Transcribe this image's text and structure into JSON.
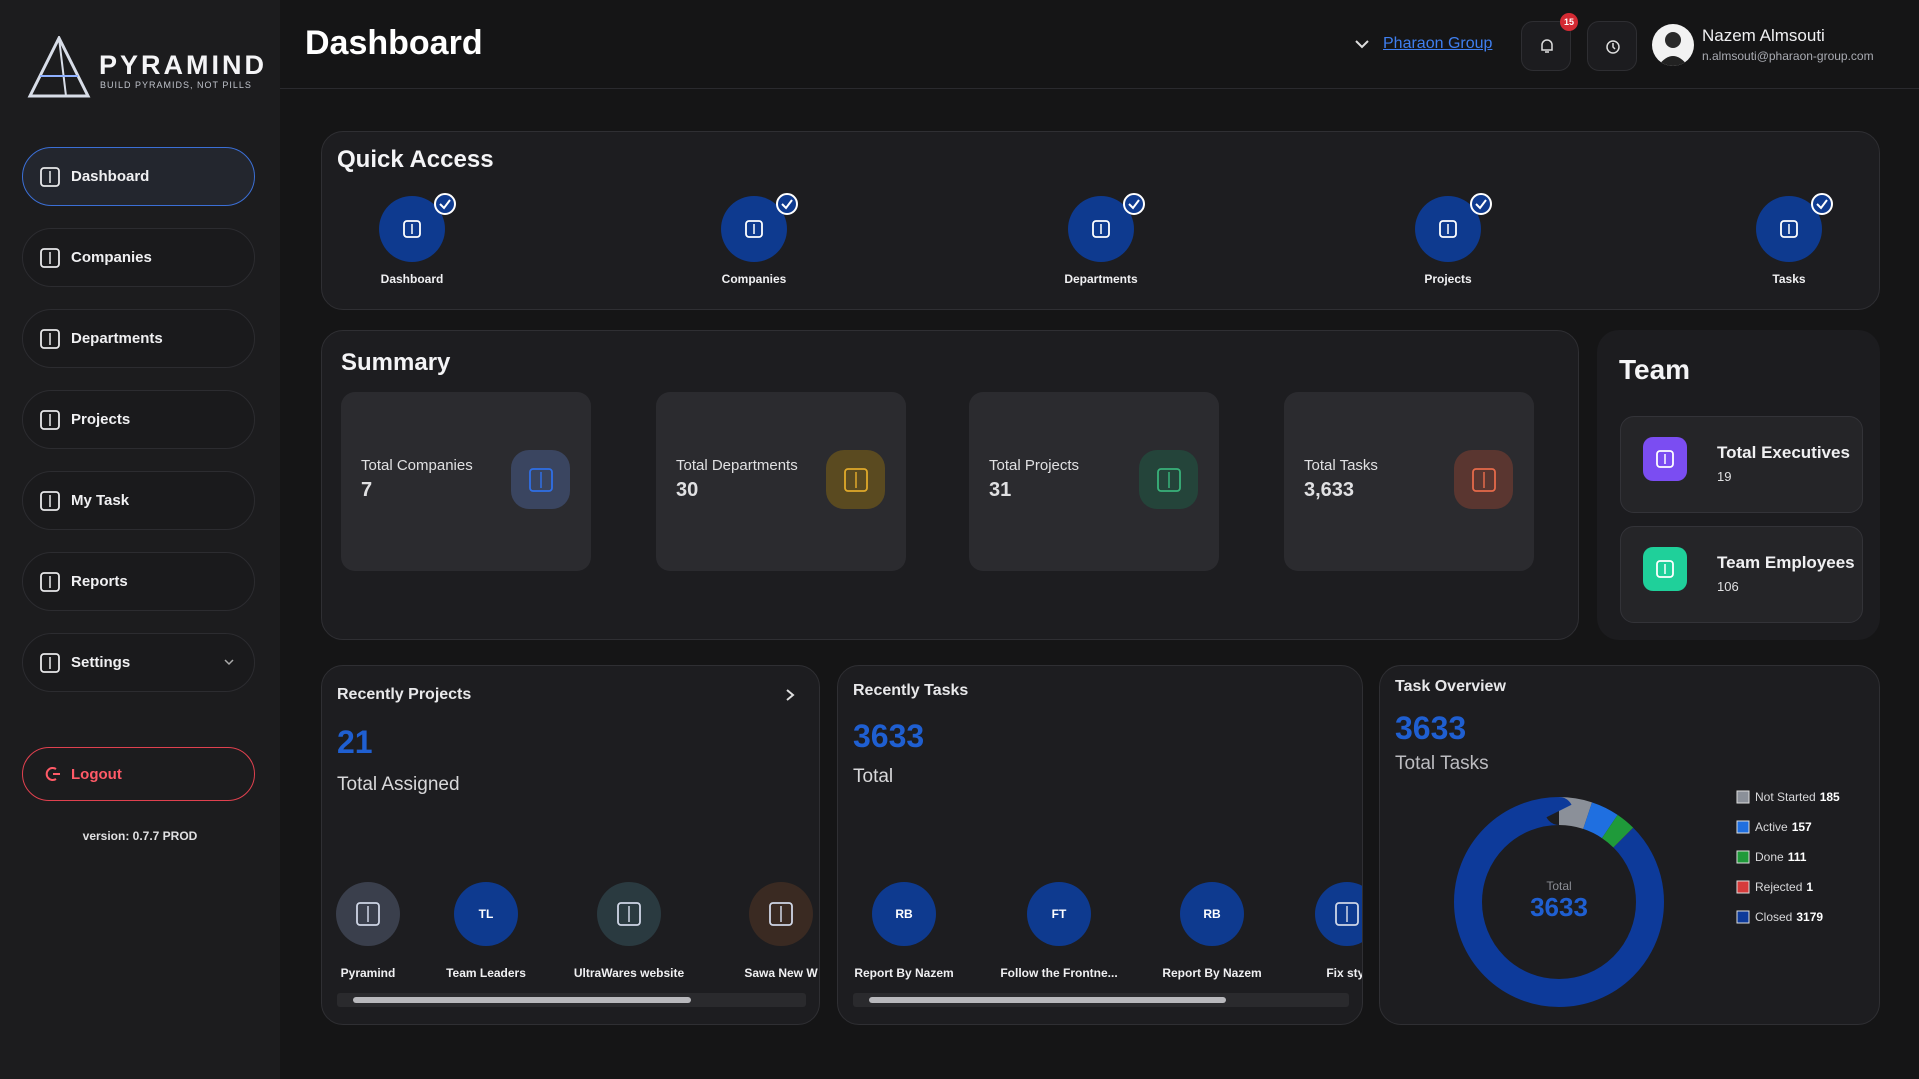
{
  "sidebar": {
    "logo": {
      "title": "PYRAMIND",
      "tagline": "BUILD PYRAMIDS, NOT PILLS"
    },
    "nav": [
      "Dashboard",
      "Companies",
      "Departments",
      "Projects",
      "My Task",
      "Reports",
      "Settings"
    ],
    "logout": "Logout",
    "version": "version: 0.7.7 PROD"
  },
  "header": {
    "title": "Dashboard",
    "org": "Pharaon Group",
    "notifications": "15",
    "user": {
      "name": "Nazem Almsouti",
      "email": "n.almsouti@pharaon-group.com"
    }
  },
  "quick_access": {
    "title": "Quick Access",
    "items": [
      "Dashboard",
      "Companies",
      "Departments",
      "Projects",
      "Tasks"
    ]
  },
  "summary": {
    "title": "Summary",
    "cards": [
      {
        "label": "Total Companies",
        "value": "7"
      },
      {
        "label": "Total Departments",
        "value": "30"
      },
      {
        "label": "Total Projects",
        "value": "31"
      },
      {
        "label": "Total Tasks",
        "value": "3,633"
      }
    ]
  },
  "team": {
    "title": "Team",
    "items": [
      {
        "label": "Total Executives",
        "value": "19"
      },
      {
        "label": "Team Employees",
        "value": "106"
      }
    ]
  },
  "recent_projects": {
    "title": "Recently Projects",
    "count": "21",
    "caption": "Total Assigned",
    "items": [
      {
        "name": "Pyramind"
      },
      {
        "avatar": "TL",
        "name": "Team Leaders"
      },
      {
        "name": "UltraWares website"
      },
      {
        "name": "Sawa New W"
      }
    ]
  },
  "recent_tasks": {
    "title": "Recently Tasks",
    "count": "3633",
    "caption": "Total",
    "items": [
      {
        "avatar": "RB",
        "name": "Report By Nazem"
      },
      {
        "avatar": "FT",
        "name": "Follow the Frontne..."
      },
      {
        "avatar": "RB",
        "name": "Report By Nazem"
      },
      {
        "name": "Fix styl"
      }
    ]
  },
  "task_overview": {
    "title": "Task Overview",
    "count": "3633",
    "caption": "Total Tasks",
    "center_label": "Total",
    "center_value": "3633",
    "legend": [
      {
        "name": "Not Started",
        "value": 185,
        "color": "#8b9099"
      },
      {
        "name": "Active",
        "value": 157,
        "color": "#1f6fe0"
      },
      {
        "name": "Done",
        "value": 111,
        "color": "#1f9a3a"
      },
      {
        "name": "Rejected",
        "value": 1,
        "color": "#d63b3b"
      },
      {
        "name": "Closed",
        "value": 3179,
        "color": "#0d3a9a"
      }
    ]
  }
}
